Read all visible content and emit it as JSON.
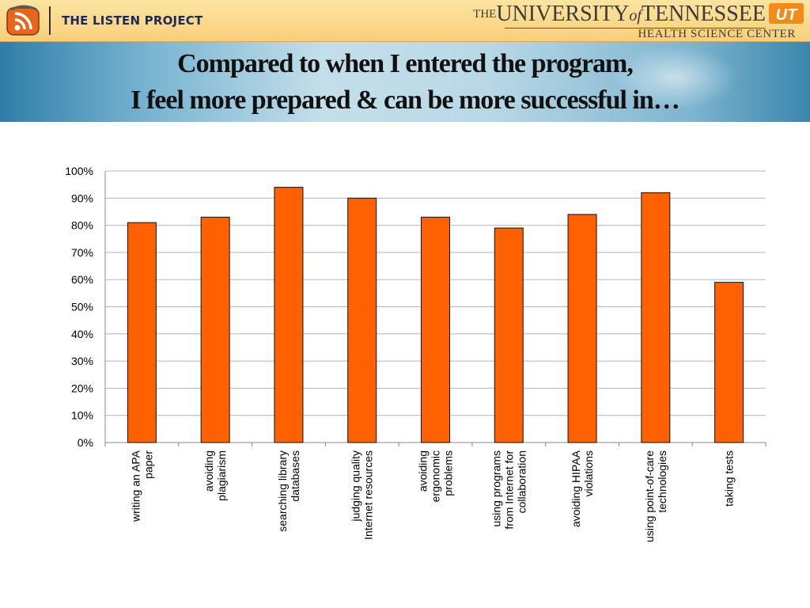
{
  "header": {
    "project": "THE LISTEN PROJECT",
    "university_the": "THE",
    "university_name_1": "UNIVERSITY",
    "university_of": "of",
    "university_name_2": "TENNESSEE",
    "university_sub": "HEALTH SCIENCE CENTER",
    "ut_mark": "UT"
  },
  "title_lines": [
    "Compared to when I entered the program,",
    "I feel more prepared & can be more successful in…"
  ],
  "colors": {
    "bar": "#ff6000",
    "bar_edge": "#111111",
    "grid": "#b5b5b5"
  },
  "chart_data": {
    "type": "bar",
    "categories": [
      [
        "writing an APA",
        "paper"
      ],
      [
        "avoiding",
        "plagiarism"
      ],
      [
        "searching library",
        "databases"
      ],
      [
        "judging quality",
        "Internet resources"
      ],
      [
        "avoiding",
        "ergonomic",
        "problems"
      ],
      [
        "using programs",
        "from Internet for",
        "collaboration"
      ],
      [
        "avoiding HIPAA",
        "violations"
      ],
      [
        "using point-of-care",
        "technologies"
      ],
      [
        "taking tests"
      ]
    ],
    "values": [
      81,
      83,
      94,
      90,
      83,
      79,
      84,
      92,
      59
    ],
    "ylim": [
      0,
      100
    ],
    "ytick_step": 10,
    "ytick_format": "%",
    "grid": true,
    "legend": "none"
  }
}
